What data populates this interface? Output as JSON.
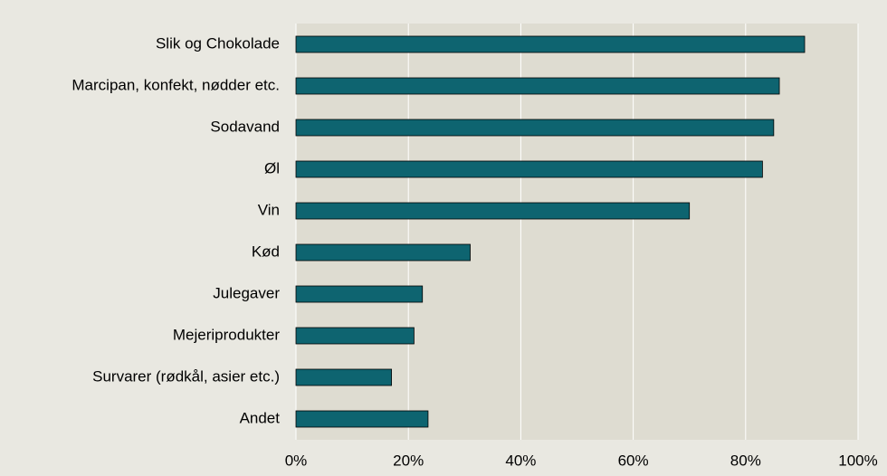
{
  "chart_data": {
    "type": "bar",
    "orientation": "horizontal",
    "categories": [
      "Slik og Chokolade",
      "Marcipan, konfekt, nødder etc.",
      "Sodavand",
      "Øl",
      "Vin",
      "Kød",
      "Julegaver",
      "Mejeriprodukter",
      "Survarer (rødkål, asier etc.)",
      "Andet"
    ],
    "values": [
      90.5,
      86,
      85,
      83,
      70,
      31,
      22.5,
      21,
      17,
      23.5
    ],
    "color": "#0e6470",
    "xlim": [
      0,
      100
    ],
    "xticks": [
      {
        "value": 0,
        "label": "0%"
      },
      {
        "value": 20,
        "label": "20%"
      },
      {
        "value": 40,
        "label": "40%"
      },
      {
        "value": 60,
        "label": "60%"
      },
      {
        "value": 80,
        "label": "80%"
      },
      {
        "value": 100,
        "label": "100%"
      }
    ],
    "grid": true
  }
}
